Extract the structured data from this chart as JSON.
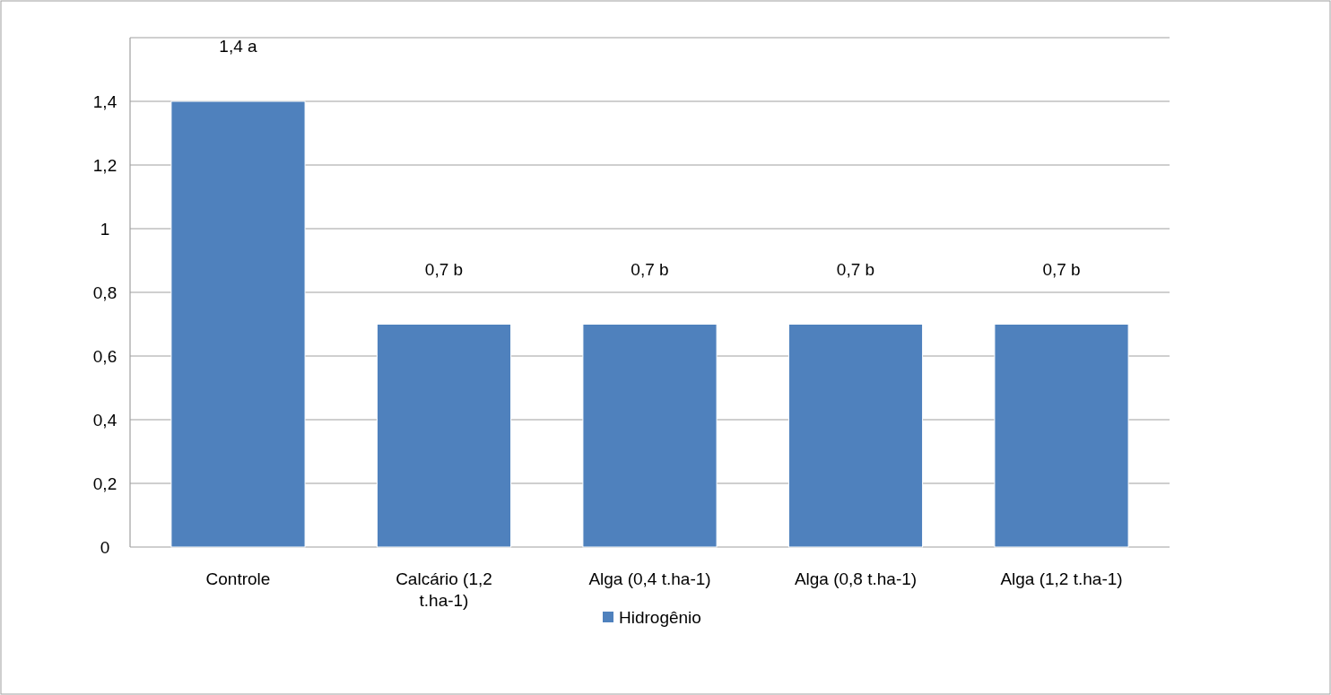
{
  "chart_data": {
    "type": "bar",
    "categories": [
      "Controle",
      "Calcário (1,2 t.ha-1)",
      "Alga (0,4 t.ha-1)",
      "Alga (0,8 t.ha-1)",
      "Alga (1,2 t.ha-1)"
    ],
    "series": [
      {
        "name": "Hidrogênio",
        "color": "#4f81bd",
        "values": [
          1.4,
          0.7,
          0.7,
          0.7,
          0.7
        ],
        "value_labels": [
          "1,4 a",
          "0,7 b",
          "0,7 b",
          "0,7 b",
          "0,7 b"
        ]
      }
    ],
    "ylim": [
      0,
      1.6
    ],
    "yticks": [
      {
        "value": 0,
        "label": "0"
      },
      {
        "value": 0.2,
        "label": "0,2"
      },
      {
        "value": 0.4,
        "label": "0,4"
      },
      {
        "value": 0.6,
        "label": "0,6"
      },
      {
        "value": 0.8,
        "label": "0,8"
      },
      {
        "value": 1,
        "label": "1"
      },
      {
        "value": 1.2,
        "label": "1,2"
      },
      {
        "value": 1.4,
        "label": "1,4"
      },
      {
        "value": 1.6,
        "label": null
      }
    ],
    "grid": "y",
    "legend": "bottom"
  }
}
